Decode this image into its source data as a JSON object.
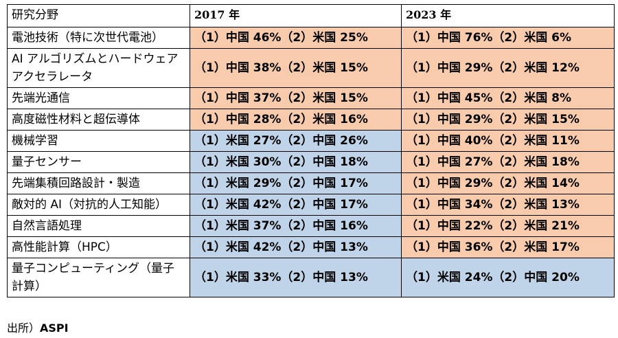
{
  "table": {
    "headers": [
      "研究分野",
      "2017 年",
      "2023 年"
    ],
    "rows": [
      {
        "field": "電池技術（特に次世代電池）",
        "y2017": "（1）中国 46%（2）米国 25%",
        "c2017": "orange",
        "y2023": "（1）中国 76%（2）米国 6%",
        "c2023": "orange"
      },
      {
        "field": "AI アルゴリズムとハードウェアアクセラレータ",
        "y2017": "（1）中国 38%（2）米国 15%",
        "c2017": "orange",
        "y2023": "（1）中国 29%（2）米国 12%",
        "c2023": "orange"
      },
      {
        "field": "先端光通信",
        "y2017": "（1）中国 37%（2）米国 15%",
        "c2017": "orange",
        "y2023": "（1）中国 45%（2）米国 8%",
        "c2023": "orange"
      },
      {
        "field": "高度磁性材料と超伝導体",
        "y2017": "（1）中国 28%（2）米国 16%",
        "c2017": "orange",
        "y2023": "（1）中国 29%（2）米国 15%",
        "c2023": "orange"
      },
      {
        "field": "機械学習",
        "y2017": "（1）米国 27%（2）中国 26%",
        "c2017": "blue",
        "y2023": "（1）中国 40%（2）米国 11%",
        "c2023": "orange"
      },
      {
        "field": "量子センサー",
        "y2017": "（1）米国 30%（2）中国 18%",
        "c2017": "blue",
        "y2023": "（1）中国 27%（2）米国 18%",
        "c2023": "orange"
      },
      {
        "field": "先端集積回路設計・製造",
        "y2017": "（1）米国 29%（2）中国 17%",
        "c2017": "blue",
        "y2023": "（1）中国 29%（2）米国 14%",
        "c2023": "orange"
      },
      {
        "field": "敵対的 AI（対抗的人工知能）",
        "y2017": "（1）米国 42%（2）中国 17%",
        "c2017": "blue",
        "y2023": "（1）中国 34%（2）米国 13%",
        "c2023": "orange"
      },
      {
        "field": "自然言語処理",
        "y2017": "（1）米国 37%（2）中国 16%",
        "c2017": "blue",
        "y2023": "（1）中国 22%（2）米国 21%",
        "c2023": "orange"
      },
      {
        "field": "高性能計算（HPC）",
        "y2017": "（1）米国 42%（2）中国 13%",
        "c2017": "blue",
        "y2023": "（1）中国 36%（2）米国 17%",
        "c2023": "orange"
      },
      {
        "field": "量子コンピューティング（量子計算）",
        "y2017": "（1）米国 33%（2）中国 13%",
        "c2017": "blue",
        "y2023": "（1）米国 24%（2）中国 20%",
        "c2023": "blue"
      }
    ]
  },
  "source": {
    "prefix": "出所）",
    "name": "ASPI"
  },
  "colors": {
    "orange": "#f8cbad",
    "blue": "#c0d4e9"
  }
}
